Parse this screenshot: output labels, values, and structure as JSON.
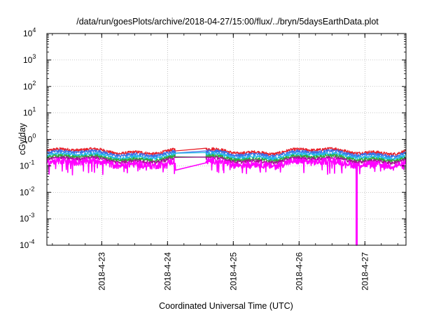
{
  "chart_data": {
    "type": "line",
    "title": "/data/run/goesPlots/archive/2018-04-27/15:00/flux/../bryn/5daysEarthData.plot",
    "xlabel": "Coordinated Universal Time (UTC)",
    "ylabel": "cGy/day",
    "yscale": "log",
    "ylim": [
      0.0001,
      10000
    ],
    "xlim": [
      "2018-04-22 04:00",
      "2018-04-27 15:00"
    ],
    "grid": true,
    "y_ticks": [
      {
        "base": "10",
        "exp": "4"
      },
      {
        "base": "10",
        "exp": "3"
      },
      {
        "base": "10",
        "exp": "2"
      },
      {
        "base": "10",
        "exp": "1"
      },
      {
        "base": "10",
        "exp": "0"
      },
      {
        "base": "10",
        "exp": "-1"
      },
      {
        "base": "10",
        "exp": "-2"
      },
      {
        "base": "10",
        "exp": "-3"
      },
      {
        "base": "10",
        "exp": "-4"
      }
    ],
    "x_ticks": [
      "2018-4-23",
      "2018-4-24",
      "2018-4-25",
      "2018-4-26",
      "2018-4-27"
    ],
    "gap": {
      "start": "2018-04-24 03:00",
      "end": "2018-04-24 14:00"
    },
    "series": [
      {
        "color": "#e8202a",
        "level": 0.36
      },
      {
        "color": "#3d6fe8",
        "level": 0.3
      },
      {
        "color": "#22b8e8",
        "level": 0.24
      },
      {
        "color": "#2eaa3c",
        "level": 0.2
      },
      {
        "color": "#a01890",
        "level": 0.17
      },
      {
        "color": "#ff00ff",
        "level": 0.13
      }
    ],
    "annotations": [
      {
        "series_color": "#ff00ff",
        "x": "2018-04-26 21:00",
        "y_min": 0.0001,
        "note_type": "dropout"
      }
    ]
  }
}
